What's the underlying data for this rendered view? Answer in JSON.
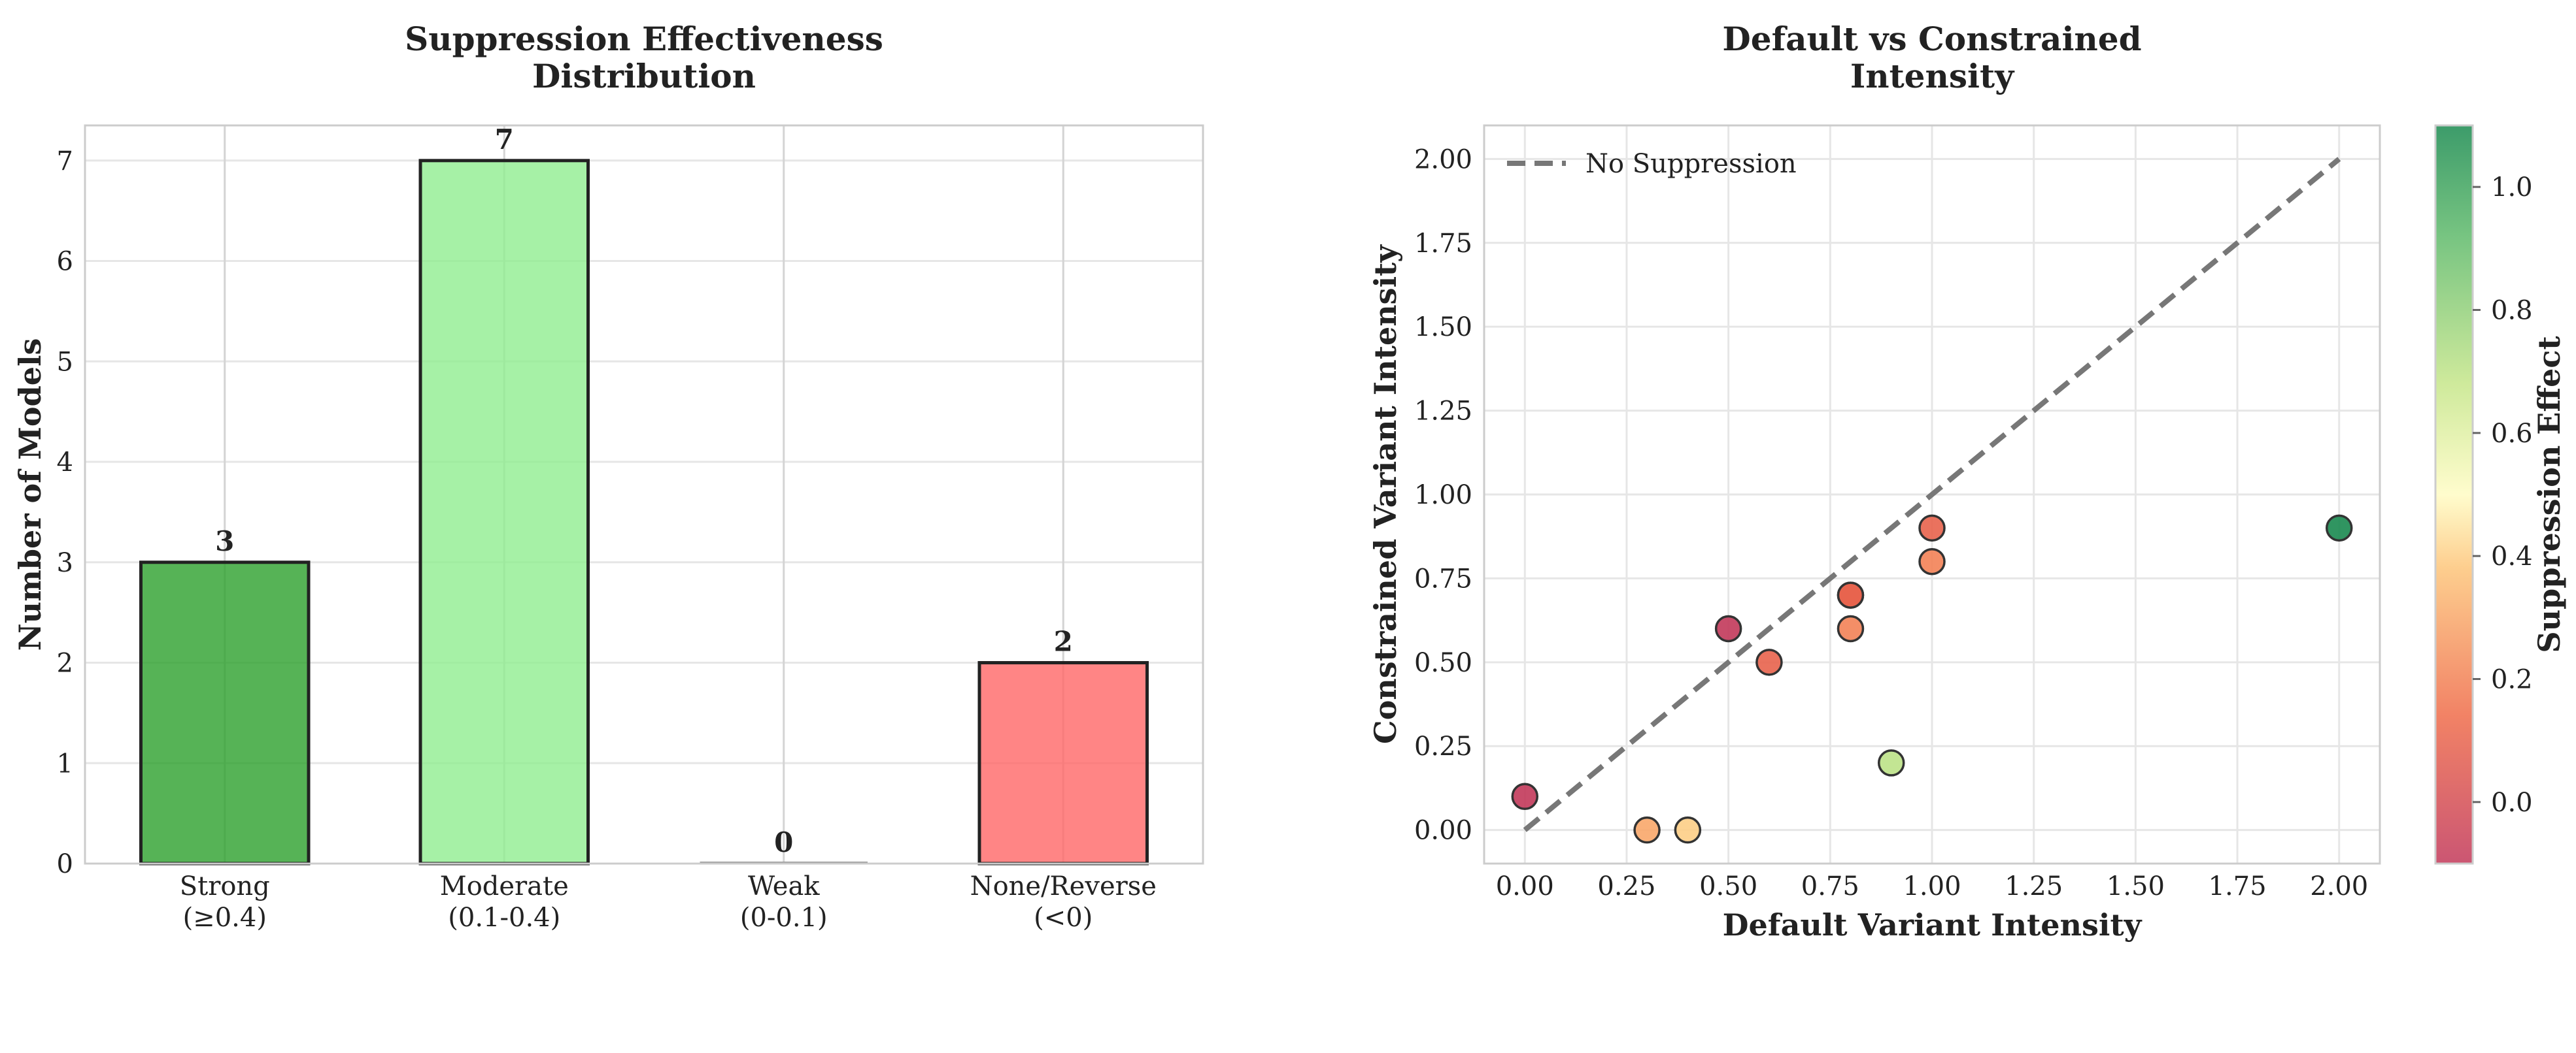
{
  "chart_data": [
    {
      "type": "bar",
      "title": "Suppression Effectiveness\nDistribution",
      "xlabel": "",
      "ylabel": "Number of Models",
      "ylim": [
        0,
        7.35
      ],
      "yticks": [
        0,
        1,
        2,
        3,
        4,
        5,
        6,
        7
      ],
      "categories": [
        "Strong\n(≥0.4)",
        "Moderate\n(0.1-0.4)",
        "Weak\n(0-0.1)",
        "None/Reverse\n(<0)"
      ],
      "values": [
        3,
        7,
        0,
        2
      ],
      "colors": [
        "#2ca02c",
        "#90ee90",
        "#ffd700",
        "#ff6666"
      ],
      "grid": true
    },
    {
      "type": "scatter",
      "title": "Default vs Constrained\nIntensity",
      "xlabel": "Default Variant Intensity",
      "ylabel": "Constrained Variant Intensity",
      "xlim": [
        -0.1,
        2.1
      ],
      "ylim": [
        -0.1,
        2.1
      ],
      "xticks": [
        "0.00",
        "0.25",
        "0.50",
        "0.75",
        "1.00",
        "1.25",
        "1.50",
        "1.75",
        "2.00"
      ],
      "yticks": [
        "0.00",
        "0.25",
        "0.50",
        "0.75",
        "1.00",
        "1.25",
        "1.50",
        "1.75",
        "2.00"
      ],
      "points": [
        {
          "x": 0.0,
          "y": 0.1,
          "effect": -0.1
        },
        {
          "x": 0.3,
          "y": 0.0,
          "effect": 0.3
        },
        {
          "x": 0.4,
          "y": 0.0,
          "effect": 0.4
        },
        {
          "x": 0.5,
          "y": 0.6,
          "effect": -0.1
        },
        {
          "x": 0.6,
          "y": 0.5,
          "effect": 0.1
        },
        {
          "x": 0.8,
          "y": 0.7,
          "effect": 0.1
        },
        {
          "x": 0.8,
          "y": 0.7,
          "effect": 0.1
        },
        {
          "x": 0.8,
          "y": 0.6,
          "effect": 0.2
        },
        {
          "x": 0.9,
          "y": 0.2,
          "effect": 0.7
        },
        {
          "x": 1.0,
          "y": 0.9,
          "effect": 0.1
        },
        {
          "x": 1.0,
          "y": 0.8,
          "effect": 0.2
        },
        {
          "x": 2.0,
          "y": 0.9,
          "effect": 1.1
        }
      ],
      "reference_line": {
        "label": "No Suppression",
        "from": [
          0,
          0
        ],
        "to": [
          2,
          2
        ],
        "style": "dashed"
      },
      "legend_position": "top-left",
      "colorbar": {
        "label": "Suppression Effect",
        "range": [
          -0.1,
          1.1
        ],
        "ticks": [
          "0.0",
          "0.2",
          "0.4",
          "0.6",
          "0.8",
          "1.0"
        ],
        "colormap": "RdYlGn"
      },
      "grid": true
    }
  ]
}
